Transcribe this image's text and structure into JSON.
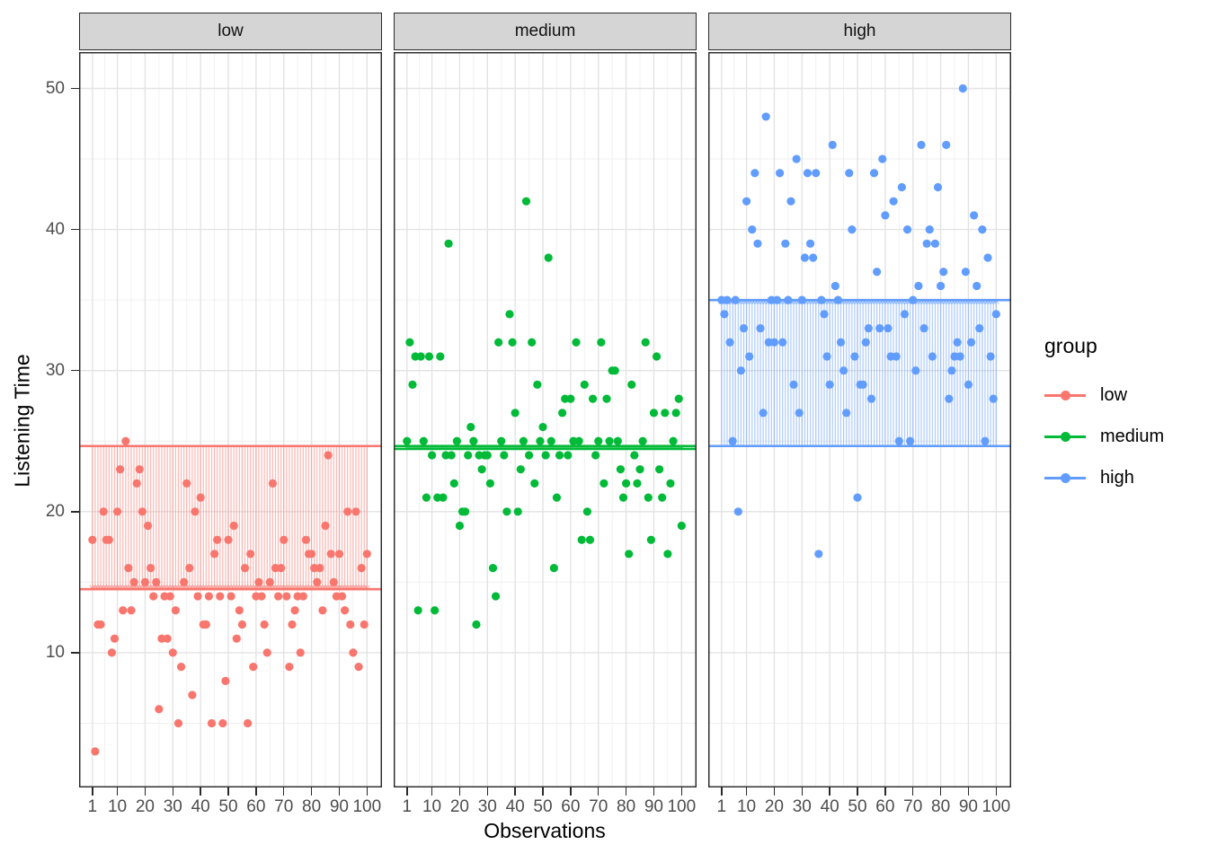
{
  "figure": {
    "x_axis_title": "Observations",
    "y_axis_title": "Listening Time"
  },
  "axes": {
    "x_ticks": [
      1,
      10,
      20,
      30,
      40,
      50,
      60,
      70,
      80,
      90,
      100
    ],
    "y_ticks": [
      10,
      20,
      30,
      40,
      50
    ],
    "x_minor": [
      5.5,
      15,
      25,
      35,
      45,
      55,
      65,
      75,
      85,
      95
    ],
    "y_minor": [
      5,
      15,
      25,
      35,
      45
    ]
  },
  "legend": {
    "title": "group",
    "items": [
      {
        "label": "low",
        "color": "#F8766D"
      },
      {
        "label": "medium",
        "color": "#00BA38"
      },
      {
        "label": "high",
        "color": "#619CFF"
      }
    ]
  },
  "chart_data": {
    "type": "scatter",
    "xlabel": "Observations",
    "ylabel": "Listening Time",
    "x_range_obs": [
      1,
      100
    ],
    "y_axis_range": [
      0.45,
      52.58
    ],
    "grand_mean": 24.65,
    "annotation": "vertical arrow segments drawn for every observation from the grand mean to the group mean",
    "facets": [
      {
        "label": "low",
        "color": "#F8766D",
        "group_mean": 14.5,
        "values": [
          18,
          3,
          12,
          12,
          20,
          18,
          18,
          10,
          11,
          20,
          23,
          13,
          25,
          16,
          13,
          15,
          22,
          23,
          20,
          15,
          19,
          16,
          14,
          15,
          6,
          11,
          14,
          11,
          14,
          10,
          13,
          5,
          9,
          15,
          22,
          16,
          7,
          20,
          14,
          21,
          12,
          12,
          14,
          5,
          17,
          18,
          14,
          5,
          8,
          18,
          14,
          19,
          11,
          13,
          12,
          16,
          5,
          17,
          9,
          14,
          15,
          14,
          12,
          10,
          15,
          22,
          16,
          14,
          16,
          18,
          14,
          9,
          12,
          13,
          14,
          10,
          14,
          18,
          17,
          17,
          16,
          15,
          16,
          13,
          19,
          24,
          17,
          15,
          14,
          17,
          14,
          13,
          20,
          12,
          10,
          20,
          9,
          16,
          12,
          17
        ]
      },
      {
        "label": "medium",
        "color": "#00BA38",
        "group_mean": 24.45,
        "values": [
          25,
          32,
          29,
          31,
          13,
          31,
          25,
          21,
          31,
          24,
          13,
          21,
          31,
          21,
          24,
          39,
          24,
          22,
          25,
          19,
          20,
          20,
          24,
          26,
          25,
          12,
          24,
          23,
          24,
          24,
          22,
          16,
          14,
          32,
          25,
          24,
          20,
          34,
          32,
          27,
          20,
          23,
          25,
          42,
          24,
          32,
          22,
          29,
          25,
          26,
          24,
          38,
          25,
          16,
          21,
          24,
          27,
          28,
          24,
          28,
          25,
          32,
          25,
          18,
          29,
          20,
          18,
          28,
          24,
          25,
          32,
          22,
          28,
          25,
          30,
          30,
          25,
          23,
          21,
          22,
          17,
          29,
          24,
          22,
          23,
          25,
          32,
          21,
          18,
          27,
          31,
          23,
          21,
          27,
          17,
          22,
          25,
          27,
          28,
          19
        ]
      },
      {
        "label": "high",
        "color": "#619CFF",
        "group_mean": 35.0,
        "values": [
          35,
          34,
          35,
          32,
          25,
          35,
          20,
          30,
          33,
          42,
          31,
          40,
          44,
          39,
          33,
          27,
          48,
          32,
          35,
          32,
          35,
          44,
          32,
          39,
          35,
          42,
          29,
          45,
          27,
          35,
          38,
          44,
          39,
          38,
          44,
          17,
          35,
          34,
          31,
          29,
          46,
          36,
          35,
          32,
          30,
          27,
          44,
          40,
          31,
          21,
          29,
          29,
          32,
          33,
          28,
          44,
          37,
          33,
          45,
          41,
          33,
          31,
          42,
          31,
          25,
          43,
          34,
          40,
          25,
          35,
          30,
          36,
          46,
          33,
          39,
          40,
          31,
          39,
          43,
          36,
          37,
          46,
          28,
          30,
          31,
          32,
          31,
          50,
          37,
          29,
          32,
          41,
          36,
          33,
          40,
          25,
          38,
          31,
          28,
          34
        ]
      }
    ]
  },
  "layout_labels": {
    "strip_low": "low",
    "strip_medium": "medium",
    "strip_high": "high"
  }
}
